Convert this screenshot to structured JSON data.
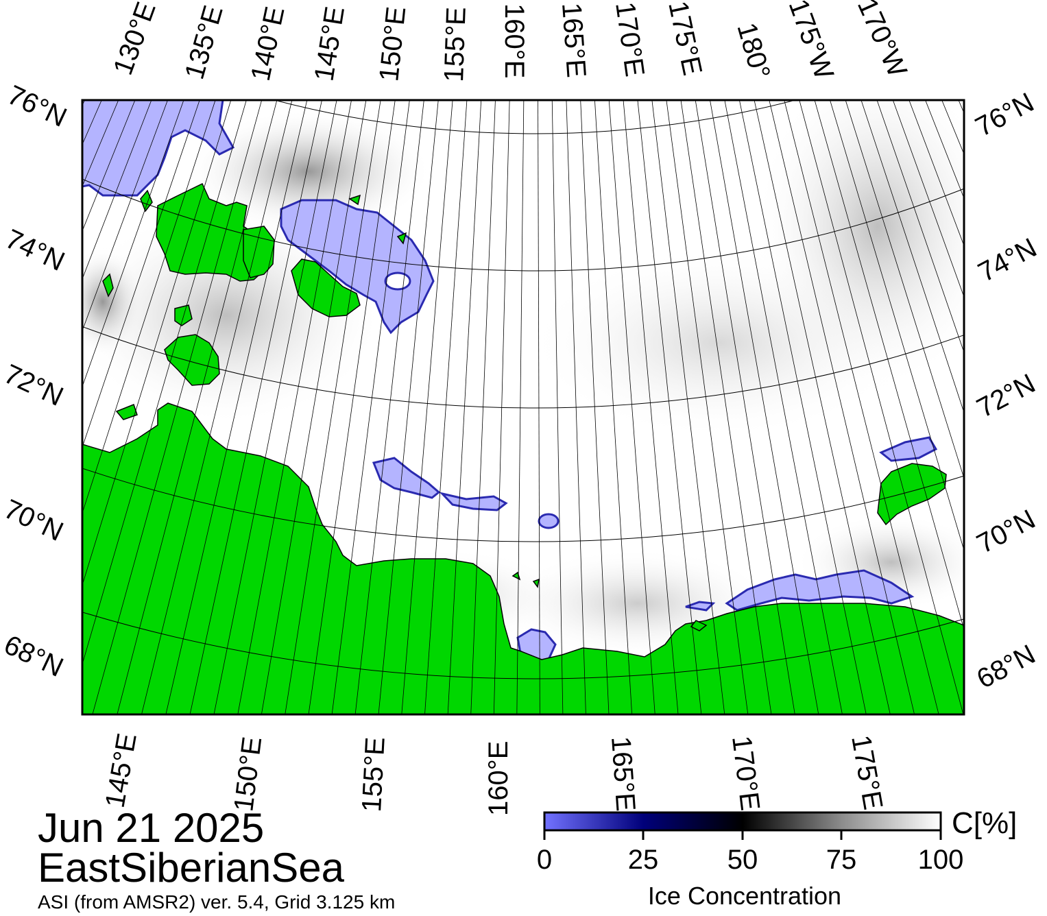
{
  "title": {
    "date": "Jun 21 2025",
    "region": "EastSiberianSea",
    "source": "ASI (from AMSR2) ver. 5.4,  Grid 3.125 km"
  },
  "map": {
    "top_lon_labels": [
      "130°E",
      "135°E",
      "140°E",
      "145°E",
      "150°E",
      "155°E",
      "160°E",
      "165°E",
      "170°E",
      "175°E",
      "180°",
      "175°W",
      "170°W"
    ],
    "bottom_lon_labels": [
      "145°E",
      "150°E",
      "155°E",
      "160°E",
      "165°E",
      "170°E",
      "175°E"
    ],
    "left_lat_labels": [
      "76°N",
      "74°N",
      "72°N",
      "70°N",
      "68°N"
    ],
    "right_lat_labels": [
      "76°N",
      "74°N",
      "72°N",
      "70°N",
      "68°N"
    ],
    "colors": {
      "land": "#00d700",
      "open_water": "#ffffff",
      "ice_low": "#7070ff",
      "ice_mid": "#000000",
      "ice_high": "#ffffff",
      "graticule": "#000000"
    }
  },
  "colorbar": {
    "ticks": [
      "0",
      "25",
      "50",
      "75",
      "100"
    ],
    "unit": "C[%]",
    "title": "Ice Concentration"
  }
}
